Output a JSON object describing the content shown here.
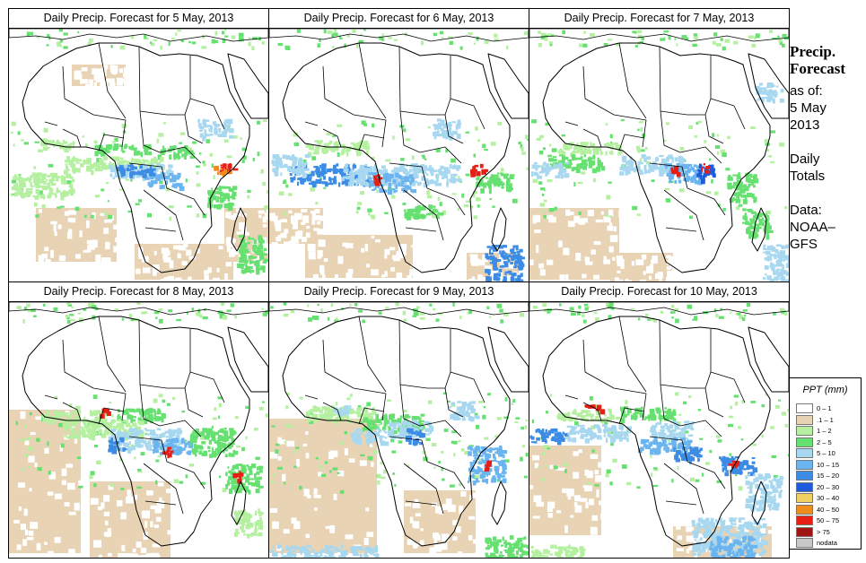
{
  "panels": [
    {
      "title": "Daily Precip. Forecast for  5 May, 2013"
    },
    {
      "title": "Daily Precip. Forecast for  6 May, 2013"
    },
    {
      "title": "Daily Precip. Forecast for  7 May, 2013"
    },
    {
      "title": "Daily Precip. Forecast for  8 May, 2013"
    },
    {
      "title": "Daily Precip. Forecast for  9 May, 2013"
    },
    {
      "title": "Daily Precip. Forecast for  10 May, 2013"
    }
  ],
  "sidebar": {
    "heading_line1": "Precip.",
    "heading_line2": "Forecast",
    "asof_label": "as of:",
    "asof_line1": "5 May",
    "asof_line2": "2013",
    "daily_line1": "Daily",
    "daily_line2": "Totals",
    "data_line1": "Data:",
    "data_line2": "NOAA–",
    "data_line3": "GFS"
  },
  "legend": {
    "title": "PPT (mm)",
    "items": [
      {
        "label": "0 – 1",
        "color": "#ffffff"
      },
      {
        "label": ".1 – 1",
        "color": "#e8d3b4"
      },
      {
        "label": "1 – 2",
        "color": "#b4f0a0"
      },
      {
        "label": "2 – 5",
        "color": "#66e070"
      },
      {
        "label": "5 – 10",
        "color": "#a8d8f0"
      },
      {
        "label": "10 – 15",
        "color": "#6ab4f0"
      },
      {
        "label": "15 – 20",
        "color": "#3c8ce6"
      },
      {
        "label": "20 – 30",
        "color": "#1e5adc"
      },
      {
        "label": "30 – 40",
        "color": "#f0d060"
      },
      {
        "label": "40 – 50",
        "color": "#f08c1e"
      },
      {
        "label": "50 – 75",
        "color": "#e61e14"
      },
      {
        "label": "> 75",
        "color": "#a01414"
      },
      {
        "label": "nodata",
        "color": "#c8c8c8"
      }
    ]
  }
}
